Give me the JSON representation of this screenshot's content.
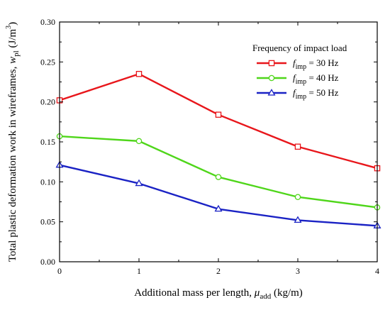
{
  "chart_data": {
    "type": "line",
    "x": [
      0,
      1,
      2,
      3,
      4
    ],
    "xticks": [
      "0",
      "1",
      "2",
      "3",
      "4"
    ],
    "yticks": [
      "0.00",
      "0.05",
      "0.10",
      "0.15",
      "0.20",
      "0.25",
      "0.30"
    ],
    "xlim": [
      0,
      4
    ],
    "ylim": [
      0,
      0.3
    ],
    "grid": false,
    "xlabel": {
      "main": "Additional mass per length, ",
      "symbol": "μ",
      "sub": "add",
      "unit": " (kg/m)"
    },
    "ylabel": {
      "main": "Total plastic deformation work in wireframes, ",
      "symbol": "w",
      "sub": "pl",
      "unit_open": " (J/m",
      "unit_sup": "3",
      "unit_close": ")"
    },
    "legend": {
      "title": "Frequency of impact load",
      "placement": "top-right"
    },
    "series": [
      {
        "name": "f_imp = 30 Hz",
        "label_symbol": "f",
        "label_sub": "imp",
        "label_rest": " = 30 Hz",
        "marker": "square",
        "color": "#e8161b",
        "values": [
          0.202,
          0.235,
          0.184,
          0.144,
          0.117
        ]
      },
      {
        "name": "f_imp = 40 Hz",
        "label_symbol": "f",
        "label_sub": "imp",
        "label_rest": " = 40 Hz",
        "marker": "circle",
        "color": "#4fd61a",
        "values": [
          0.157,
          0.151,
          0.106,
          0.081,
          0.068
        ]
      },
      {
        "name": "f_imp = 50 Hz",
        "label_symbol": "f",
        "label_sub": "imp",
        "label_rest": " = 50 Hz",
        "marker": "triangle",
        "color": "#1a22c4",
        "values": [
          0.121,
          0.098,
          0.066,
          0.052,
          0.045
        ]
      }
    ]
  }
}
